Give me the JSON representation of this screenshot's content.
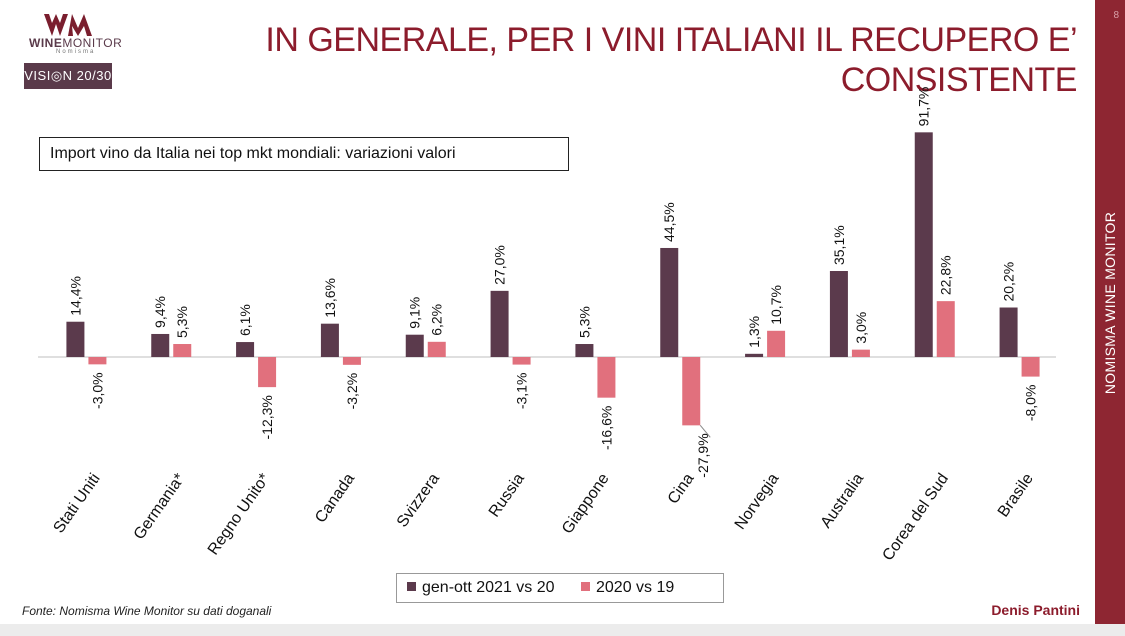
{
  "logo": {
    "wine": "WINE",
    "monitor": "MONITOR",
    "nomisma": "Nomisma",
    "vision": "VISI◎N 20/30"
  },
  "title": "IN GENERALE, PER I VINI ITALIANI IL RECUPERO E’ CONSISTENTE",
  "page_number": "8",
  "sidebar_label": "NOMISMA WINE MONITOR",
  "source": "Fonte: Nomisma Wine Monitor su dati doganali",
  "author": "Denis Pantini",
  "colors": {
    "accent": "#8e2632",
    "title": "#8c1c2c",
    "series1": "#5b3a4c",
    "series2": "#e1707d"
  },
  "chart_data": {
    "type": "bar",
    "title": "Import vino da Italia nei top mkt mondiali: variazioni valori",
    "categories": [
      "Stati Uniti",
      "Germania*",
      "Regno Unito*",
      "Canada",
      "Svizzera",
      "Russia",
      "Giappone",
      "Cina",
      "Norvegia",
      "Australia",
      "Corea del Sud",
      "Brasile"
    ],
    "series": [
      {
        "name": "gen-ott 2021 vs 20",
        "color": "#5b3a4c",
        "values": [
          14.4,
          9.4,
          6.1,
          13.6,
          9.1,
          27.0,
          5.3,
          44.5,
          1.3,
          35.1,
          91.7,
          20.2
        ],
        "labels": [
          "14,4%",
          "9,4%",
          "6,1%",
          "13,6%",
          "9,1%",
          "27,0%",
          "5,3%",
          "44,5%",
          "1,3%",
          "35,1%",
          "91,7%",
          "20,2%"
        ]
      },
      {
        "name": "2020 vs 19",
        "color": "#e1707d",
        "values": [
          -3.0,
          5.3,
          -12.3,
          -3.2,
          6.2,
          -3.1,
          -16.6,
          -27.9,
          10.7,
          3.0,
          22.8,
          -8.0
        ],
        "labels": [
          "-3,0%",
          "5,3%",
          "-12,3%",
          "-3,2%",
          "6,2%",
          "-3,1%",
          "-16,6%",
          "-27,9%",
          "10,7%",
          "3,0%",
          "22,8%",
          "-8,0%"
        ]
      }
    ],
    "xlabel": "",
    "ylabel": "",
    "grid": false,
    "legend": "bottom"
  }
}
